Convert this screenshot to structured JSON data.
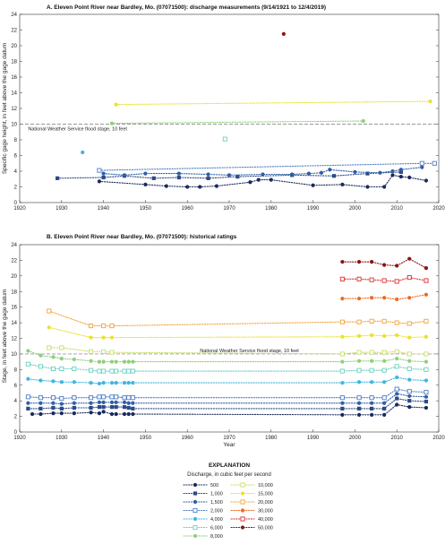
{
  "chart_data": [
    {
      "id": "A",
      "type": "scatter",
      "title": "A. Eleven Point River near Bardley, Mo. (07071500): discharge measurements (9/14/1921 to 12/4/2019)",
      "xlabel": "",
      "ylabel": "Specific gage height, in feet above the gage datum",
      "xlim": [
        1920,
        2020
      ],
      "ylim": [
        0,
        24
      ],
      "xticks": [
        "1920",
        "1930",
        "1940",
        "1950",
        "1960",
        "1970",
        "1980",
        "1990",
        "2000",
        "2010",
        "2020"
      ],
      "yticks": [
        "0",
        "2",
        "4",
        "6",
        "8",
        "10",
        "12",
        "14",
        "16",
        "18",
        "20",
        "22",
        "24"
      ],
      "grid": false,
      "flood_stage": {
        "y": 10,
        "label": "National Weather Service flood stage, 10 feet"
      },
      "series": [
        {
          "name": "500",
          "points": [
            [
              1939,
              2.7
            ],
            [
              1950,
              2.3
            ],
            [
              1955,
              2.1
            ],
            [
              1960,
              2.0
            ],
            [
              1963,
              2.0
            ],
            [
              1967,
              2.1
            ],
            [
              1975,
              2.6
            ],
            [
              1977,
              2.9
            ],
            [
              1980,
              2.9
            ],
            [
              1990,
              2.2
            ],
            [
              1997,
              2.3
            ],
            [
              2003,
              2.0
            ],
            [
              2007,
              2.0
            ],
            [
              2009,
              3.5
            ],
            [
              2011,
              3.3
            ],
            [
              2013,
              3.2
            ],
            [
              2017,
              2.8
            ]
          ]
        },
        {
          "name": "1,000",
          "points": [
            [
              1929,
              3.1
            ],
            [
              1940,
              3.2
            ],
            [
              1945,
              3.4
            ],
            [
              1952,
              3.1
            ],
            [
              1958,
              3.2
            ],
            [
              1965,
              3.1
            ],
            [
              1972,
              3.3
            ],
            [
              1985,
              3.5
            ],
            [
              1995,
              3.4
            ],
            [
              2003,
              3.7
            ],
            [
              2011,
              3.9
            ]
          ]
        },
        {
          "name": "1,500",
          "points": [
            [
              1940,
              3.7
            ],
            [
              1945,
              3.5
            ],
            [
              1950,
              3.7
            ],
            [
              1958,
              3.7
            ],
            [
              1965,
              3.6
            ],
            [
              1970,
              3.5
            ],
            [
              1978,
              3.6
            ],
            [
              1985,
              3.6
            ],
            [
              1989,
              3.7
            ],
            [
              1992,
              3.8
            ],
            [
              1994,
              4.2
            ],
            [
              2000,
              3.9
            ],
            [
              2006,
              3.8
            ],
            [
              2009,
              4.0
            ],
            [
              2011,
              4.2
            ],
            [
              2016,
              4.5
            ]
          ]
        },
        {
          "name": "2,000",
          "points": [
            [
              1939,
              4.1
            ],
            [
              2016,
              5.0
            ],
            [
              2019,
              5.0
            ]
          ]
        },
        {
          "name": "4,000",
          "points": [
            [
              1935,
              6.4
            ]
          ]
        },
        {
          "name": "6,000",
          "points": [
            [
              1969,
              8.1
            ]
          ]
        },
        {
          "name": "8,000",
          "points": [
            [
              1942,
              10.1
            ],
            [
              2002,
              10.4
            ]
          ]
        },
        {
          "name": "15,000",
          "points": [
            [
              1943,
              12.5
            ],
            [
              2018,
              12.9
            ]
          ]
        },
        {
          "name": "50,000",
          "points": [
            [
              1983,
              21.5
            ]
          ]
        }
      ]
    },
    {
      "id": "B",
      "type": "line",
      "title": "B. Eleven Point River near Bardley, Mo. (07071500): historical ratings",
      "xlabel": "Year",
      "ylabel": "Stage, in feet above the gage datum",
      "xlim": [
        1920,
        2020
      ],
      "ylim": [
        0,
        24
      ],
      "xticks": [
        "1920",
        "1930",
        "1940",
        "1950",
        "1960",
        "1970",
        "1980",
        "1990",
        "2000",
        "2010",
        "2020"
      ],
      "yticks": [
        "0",
        "2",
        "4",
        "6",
        "8",
        "10",
        "12",
        "14",
        "16",
        "18",
        "20",
        "22",
        "24"
      ],
      "grid": false,
      "flood_stage": {
        "y": 10,
        "label": "National Weather Service flood stage, 10 feet"
      },
      "series": [
        {
          "name": "500",
          "x": [
            1923,
            1925,
            1928,
            1930,
            1933,
            1937,
            1939,
            1940,
            1942,
            1943,
            1945,
            1946,
            1947,
            1997,
            2001,
            2004,
            2007,
            2010,
            2013,
            2017
          ],
          "y": [
            2.3,
            2.3,
            2.4,
            2.4,
            2.4,
            2.5,
            2.4,
            2.6,
            2.3,
            2.3,
            2.3,
            2.3,
            2.3,
            2.2,
            2.2,
            2.2,
            2.2,
            3.5,
            3.2,
            3.1
          ]
        },
        {
          "name": "1,000",
          "x": [
            1922,
            1925,
            1928,
            1930,
            1933,
            1937,
            1939,
            1940,
            1942,
            1943,
            1945,
            1946,
            1947,
            1997,
            2001,
            2004,
            2007,
            2010,
            2013,
            2017
          ],
          "y": [
            3.0,
            3.0,
            3.1,
            3.0,
            3.1,
            3.1,
            3.2,
            3.2,
            3.2,
            3.2,
            3.2,
            3.1,
            3.0,
            3.0,
            3.0,
            3.0,
            3.0,
            4.3,
            4.0,
            3.9
          ]
        },
        {
          "name": "1,500",
          "x": [
            1922,
            1925,
            1928,
            1930,
            1933,
            1937,
            1939,
            1940,
            1942,
            1943,
            1945,
            1946,
            1947,
            1997,
            2001,
            2004,
            2007,
            2010,
            2013,
            2017
          ],
          "y": [
            3.7,
            3.7,
            3.7,
            3.6,
            3.7,
            3.7,
            3.8,
            3.8,
            3.8,
            3.8,
            3.8,
            3.7,
            3.7,
            3.7,
            3.7,
            3.7,
            3.7,
            4.9,
            4.6,
            4.5
          ]
        },
        {
          "name": "2,000",
          "x": [
            1922,
            1925,
            1928,
            1930,
            1933,
            1937,
            1939,
            1940,
            1942,
            1943,
            1945,
            1946,
            1947,
            1997,
            2001,
            2004,
            2007,
            2010,
            2013,
            2017
          ],
          "y": [
            4.5,
            4.4,
            4.4,
            4.3,
            4.4,
            4.4,
            4.5,
            4.5,
            4.5,
            4.5,
            4.4,
            4.4,
            4.4,
            4.4,
            4.4,
            4.4,
            4.4,
            5.5,
            5.2,
            5.1
          ]
        },
        {
          "name": "4,000",
          "x": [
            1922,
            1925,
            1928,
            1930,
            1933,
            1937,
            1939,
            1940,
            1942,
            1943,
            1945,
            1946,
            1947,
            1997,
            2001,
            2004,
            2007,
            2010,
            2013,
            2017
          ],
          "y": [
            6.8,
            6.6,
            6.5,
            6.4,
            6.4,
            6.3,
            6.2,
            6.3,
            6.3,
            6.3,
            6.3,
            6.3,
            6.3,
            6.3,
            6.4,
            6.4,
            6.4,
            7.0,
            6.7,
            6.6
          ]
        },
        {
          "name": "6,000",
          "x": [
            1922,
            1925,
            1928,
            1930,
            1933,
            1937,
            1939,
            1940,
            1942,
            1943,
            1945,
            1946,
            1947,
            1997,
            2001,
            2004,
            2007,
            2010,
            2013,
            2017
          ],
          "y": [
            8.7,
            8.4,
            8.1,
            8.1,
            8.1,
            7.9,
            7.8,
            7.8,
            7.8,
            7.8,
            7.8,
            7.8,
            7.8,
            7.8,
            7.9,
            7.9,
            7.9,
            8.4,
            8.1,
            8.0
          ]
        },
        {
          "name": "8,000",
          "x": [
            1922,
            1925,
            1928,
            1930,
            1933,
            1937,
            1939,
            1940,
            1942,
            1943,
            1945,
            1946,
            1947,
            1997,
            2001,
            2004,
            2007,
            2010,
            2013,
            2017
          ],
          "y": [
            10.4,
            9.8,
            9.6,
            9.4,
            9.3,
            9.1,
            9.0,
            9.0,
            9.0,
            9.0,
            9.0,
            9.0,
            9.0,
            9.0,
            9.1,
            9.1,
            9.1,
            9.4,
            9.1,
            9.0
          ]
        },
        {
          "name": "10,000",
          "x": [
            1927,
            1930,
            1937,
            1940,
            1942,
            1997,
            2001,
            2004,
            2007,
            2010,
            2013,
            2017
          ],
          "y": [
            10.8,
            10.8,
            10.3,
            10.3,
            10.2,
            10.0,
            10.2,
            10.2,
            10.2,
            10.3,
            10.0,
            10.0
          ]
        },
        {
          "name": "15,000",
          "x": [
            1927,
            1937,
            1940,
            1942,
            1997,
            2001,
            2004,
            2007,
            2010,
            2013,
            2017
          ],
          "y": [
            13.4,
            12.1,
            12.1,
            12.1,
            12.2,
            12.3,
            12.4,
            12.3,
            12.4,
            12.1,
            12.2
          ]
        },
        {
          "name": "20,000",
          "x": [
            1927,
            1937,
            1940,
            1942,
            1997,
            2001,
            2004,
            2007,
            2010,
            2013,
            2017
          ],
          "y": [
            15.5,
            13.6,
            13.6,
            13.6,
            14.1,
            14.1,
            14.2,
            14.2,
            14.0,
            13.9,
            14.2
          ]
        },
        {
          "name": "30,000",
          "x": [
            1997,
            2001,
            2004,
            2007,
            2010,
            2013,
            2017
          ],
          "y": [
            17.1,
            17.1,
            17.2,
            17.2,
            17.0,
            17.2,
            17.6
          ]
        },
        {
          "name": "40,000",
          "x": [
            1997,
            2001,
            2004,
            2007,
            2010,
            2013,
            2017
          ],
          "y": [
            19.6,
            19.6,
            19.5,
            19.4,
            19.3,
            19.8,
            19.4
          ]
        },
        {
          "name": "50,000",
          "x": [
            1997,
            2001,
            2004,
            2007,
            2010,
            2013,
            2017
          ],
          "y": [
            21.8,
            21.8,
            21.8,
            21.4,
            21.3,
            22.2,
            21.0
          ]
        }
      ]
    }
  ],
  "legend": {
    "title": "EXPLANATION",
    "subtitle": "Discharge, in cubic feet per second",
    "placement": "bottom-center",
    "items": [
      {
        "label": "500",
        "color": "#1b2a5c",
        "marker": "circle-filled"
      },
      {
        "label": "1,000",
        "color": "#2c4a86",
        "marker": "square-filled"
      },
      {
        "label": "1,500",
        "color": "#2f5fa6",
        "marker": "circle-filled"
      },
      {
        "label": "2,000",
        "color": "#4f7fc4",
        "marker": "square-open"
      },
      {
        "label": "4,000",
        "color": "#3fb6e0",
        "marker": "circle-filled"
      },
      {
        "label": "6,000",
        "color": "#6ccfc0",
        "marker": "square-open"
      },
      {
        "label": "8,000",
        "color": "#8ed07a",
        "marker": "circle-filled"
      },
      {
        "label": "10,000",
        "color": "#c9dd6a",
        "marker": "square-open"
      },
      {
        "label": "15,000",
        "color": "#e9e22a",
        "marker": "circle-filled"
      },
      {
        "label": "20,000",
        "color": "#f2a33a",
        "marker": "square-open"
      },
      {
        "label": "30,000",
        "color": "#ee6a22",
        "marker": "circle-filled"
      },
      {
        "label": "40,000",
        "color": "#d8302a",
        "marker": "square-open"
      },
      {
        "label": "50,000",
        "color": "#8b1414",
        "marker": "circle-filled"
      }
    ]
  }
}
